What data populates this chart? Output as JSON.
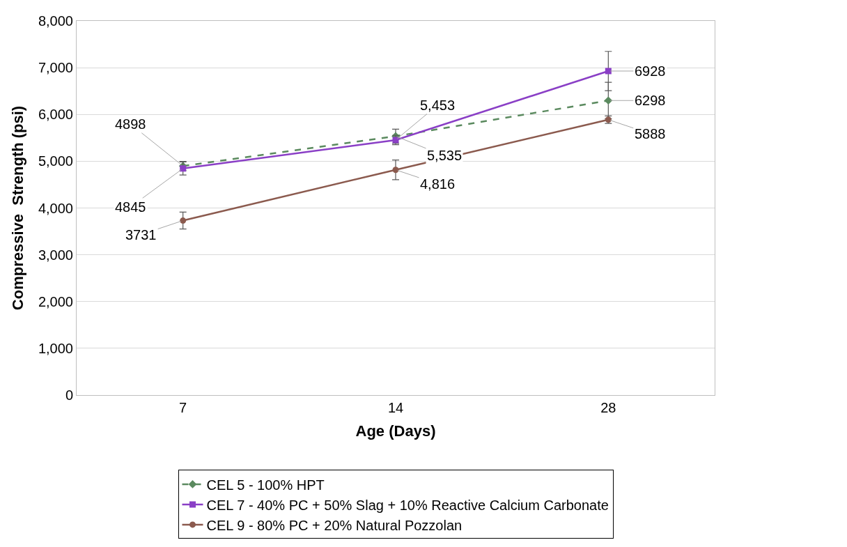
{
  "chart_data": {
    "type": "line",
    "xlabel": "Age (Days)",
    "ylabel": "Compressive  Strength (psi)",
    "categories": [
      "7",
      "14",
      "28"
    ],
    "ylim": [
      0,
      8000
    ],
    "yticks": [
      {
        "value": 0,
        "label": "0"
      },
      {
        "value": 1000,
        "label": "1,000"
      },
      {
        "value": 2000,
        "label": "2,000"
      },
      {
        "value": 3000,
        "label": "3,000"
      },
      {
        "value": 4000,
        "label": "4,000"
      },
      {
        "value": 5000,
        "label": "5,000"
      },
      {
        "value": 6000,
        "label": "6,000"
      },
      {
        "value": 7000,
        "label": "7,000"
      },
      {
        "value": 8000,
        "label": "8,000"
      }
    ],
    "grid": "y",
    "legend": "bottom",
    "series": [
      {
        "name": "CEL 5 - 100% HPT",
        "color": "#5b8a5f",
        "values": [
          4898,
          5535,
          6298
        ],
        "errors": [
          100,
          150,
          390
        ],
        "marker": "diamond",
        "line_style": "dashed",
        "value_labels": [
          "4898",
          "5,535",
          "6298"
        ]
      },
      {
        "name": "CEL 7 - 40% PC + 50% Slag + 10% Reactive Calcium Carbonate",
        "color": "#8a3fc6",
        "values": [
          4845,
          5453,
          6928
        ],
        "errors": [
          140,
          100,
          420
        ],
        "marker": "square",
        "line_style": "solid",
        "value_labels": [
          "4845",
          "5,453",
          "6928"
        ]
      },
      {
        "name": "CEL 9 - 80% PC + 20% Natural Pozzolan",
        "color": "#8b5a4e",
        "values": [
          3731,
          4816,
          5888
        ],
        "errors": [
          180,
          210,
          80
        ],
        "marker": "circle",
        "line_style": "solid",
        "value_labels": [
          "3731",
          "4,816",
          "5888"
        ]
      }
    ]
  }
}
